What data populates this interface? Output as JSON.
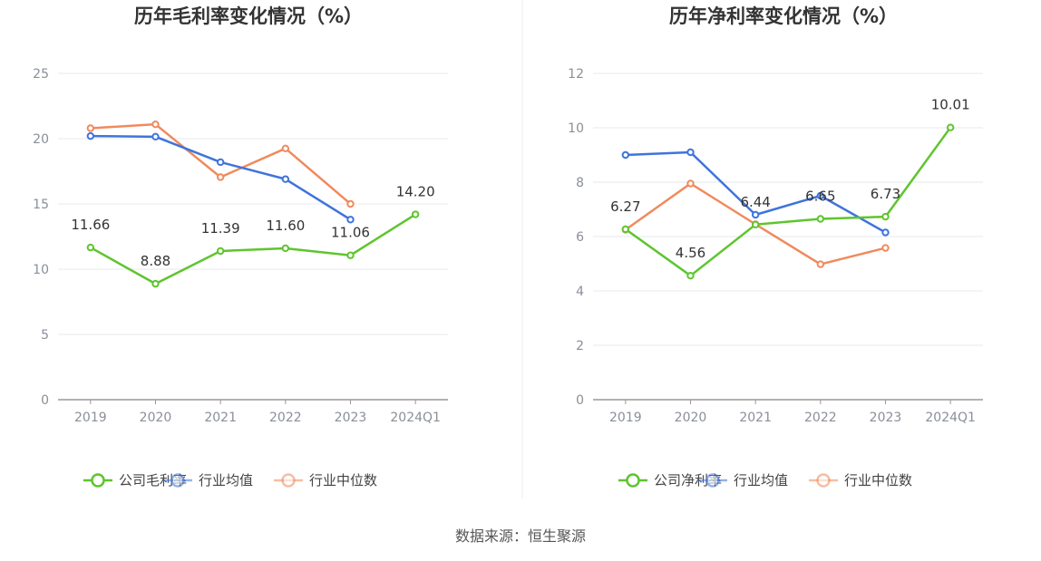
{
  "colors": {
    "company": "#5ec52e",
    "avg": "#3f74dc",
    "median": "#f08a5d",
    "grid": "#e6e8ef",
    "axis": "#999999"
  },
  "source": "数据来源：恒生聚源",
  "chart_data": [
    {
      "type": "line",
      "title": "历年毛利率变化情况（%）",
      "categories": [
        "2019",
        "2020",
        "2021",
        "2022",
        "2023",
        "2024Q1"
      ],
      "ylim": [
        0,
        25
      ],
      "yticks": [
        "0",
        "5",
        "10",
        "15",
        "20",
        "25"
      ],
      "grid": true,
      "legend_position": "bottom",
      "series": [
        {
          "name": "公司毛利率",
          "color_key": "company",
          "values": [
            11.66,
            8.88,
            11.39,
            11.6,
            11.06,
            14.2
          ],
          "labels": [
            "11.66",
            "8.88",
            "11.39",
            "11.60",
            "11.06",
            "14.20"
          ]
        },
        {
          "name": "行业均值",
          "color_key": "avg",
          "values": [
            20.2,
            20.15,
            18.2,
            16.9,
            13.8,
            null
          ]
        },
        {
          "name": "行业中位数",
          "color_key": "median",
          "values": [
            20.8,
            21.1,
            17.05,
            19.25,
            15.0,
            null
          ]
        }
      ]
    },
    {
      "type": "line",
      "title": "历年净利率变化情况（%）",
      "categories": [
        "2019",
        "2020",
        "2021",
        "2022",
        "2023",
        "2024Q1"
      ],
      "ylim": [
        0,
        12
      ],
      "yticks": [
        "0",
        "2",
        "4",
        "6",
        "8",
        "10",
        "12"
      ],
      "grid": true,
      "legend_position": "bottom",
      "series": [
        {
          "name": "公司净利率",
          "color_key": "company",
          "values": [
            6.27,
            4.56,
            6.44,
            6.65,
            6.73,
            10.01
          ],
          "labels": [
            "6.27",
            "4.56",
            "6.44",
            "6.65",
            "6.73",
            "10.01"
          ]
        },
        {
          "name": "行业均值",
          "color_key": "avg",
          "values": [
            9.0,
            9.1,
            6.8,
            7.5,
            6.15,
            null
          ]
        },
        {
          "name": "行业中位数",
          "color_key": "median",
          "values": [
            6.25,
            7.95,
            6.45,
            4.98,
            5.58,
            null
          ]
        }
      ]
    }
  ]
}
